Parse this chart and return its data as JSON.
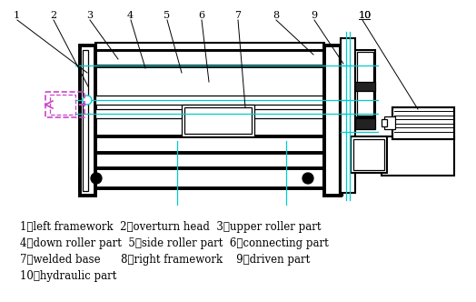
{
  "legend_lines": [
    "1、left framework  2、overturn head  3、upper roller part",
    "4、down roller part  5、side roller part  6、connecting part",
    "7、welded base      8、right framework    9、driven part",
    "10、hydraulic part"
  ],
  "label_numbers": [
    "1",
    "2",
    "3",
    "4",
    "5",
    "6",
    "7",
    "8",
    "9",
    "10"
  ],
  "machine_color": "#000000",
  "cyan_color": "#00CDCD",
  "magenta_color": "#CC44CC",
  "bg_color": "#ffffff",
  "text_color": "#000000",
  "font_size": 8.5,
  "lw_thick": 2.8,
  "lw_med": 1.5,
  "lw_thin": 0.9,
  "lw_cyan": 0.9
}
